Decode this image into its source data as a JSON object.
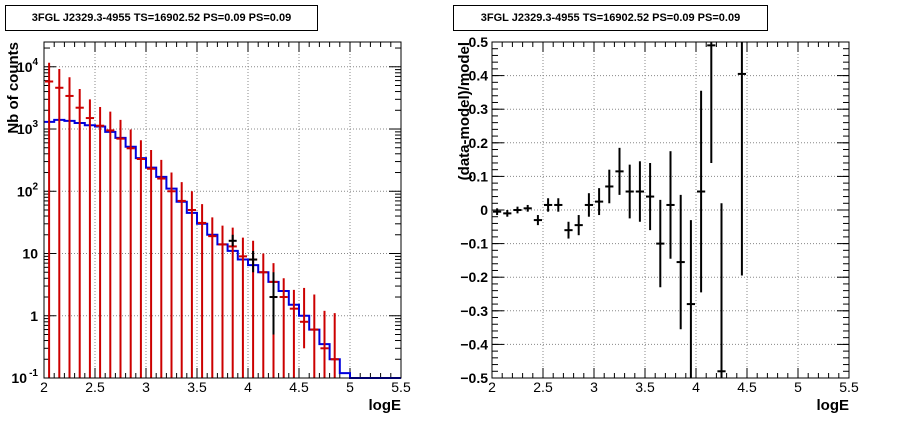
{
  "panels": [
    {
      "title": "3FGL J2329.3-4955 TS=16902.52 PS=0.09 PS=0.09"
    },
    {
      "title": "3FGL J2329.3-4955 TS=16902.52 PS=0.09 PS=0.09"
    }
  ],
  "colors": {
    "data": "#cc0000",
    "model": "#0000dd",
    "residual": "#000000",
    "grid": "#888888"
  },
  "chart_data": [
    {
      "type": "line",
      "title": "3FGL J2329.3-4955 TS=16902.52 PS=0.09 PS=0.09",
      "xlabel": "logE",
      "ylabel": "Nb of counts",
      "yscale": "log",
      "xlim": [
        2,
        5.5
      ],
      "ylim": [
        0.1,
        25000
      ],
      "grid": true,
      "x_ticks": [
        "2",
        "2.5",
        "3",
        "3.5",
        "4",
        "4.5",
        "5",
        "5.5"
      ],
      "y_ticks": [
        "10^-1",
        "1",
        "10",
        "10^2",
        "10^3",
        "10^4"
      ],
      "bin_edges": [
        2.0,
        2.1,
        2.2,
        2.3,
        2.4,
        2.5,
        2.6,
        2.7,
        2.8,
        2.9,
        3.0,
        3.1,
        3.2,
        3.3,
        3.4,
        3.5,
        3.6,
        3.7,
        3.8,
        3.9,
        4.0,
        4.1,
        4.2,
        4.3,
        4.4,
        4.5,
        4.6,
        4.7,
        4.8,
        4.9,
        5.0,
        5.1,
        5.2,
        5.3,
        5.4,
        5.5
      ],
      "series": [
        {
          "role": "data",
          "x": [
            2.05,
            2.15,
            2.25,
            2.35,
            2.45,
            2.55,
            2.65,
            2.75,
            2.85,
            2.95,
            3.05,
            3.15,
            3.25,
            3.35,
            3.45,
            3.55,
            3.65,
            3.75,
            3.85,
            3.95,
            4.05,
            4.15,
            4.25,
            4.35,
            4.45,
            4.55,
            4.65,
            4.75,
            4.85
          ],
          "values": [
            5800,
            4600,
            3400,
            2200,
            1500,
            1130,
            950,
            700,
            490,
            330,
            230,
            160,
            100,
            70,
            50,
            31,
            19,
            14,
            13,
            9,
            8,
            5,
            3.5,
            2,
            1.3,
            0.8,
            0.6,
            0.3,
            0.2
          ],
          "err_low": [
            5800,
            4600,
            3400,
            2200,
            1500,
            1130,
            950,
            700,
            490,
            330,
            230,
            160,
            100,
            70,
            50,
            31,
            19,
            14,
            13,
            9,
            8,
            5,
            3.5,
            2,
            1.3,
            0.5,
            0.5,
            0.25,
            0.18
          ],
          "err_high": [
            5800,
            4600,
            3400,
            2200,
            1500,
            1130,
            950,
            700,
            490,
            330,
            230,
            160,
            100,
            70,
            50,
            31,
            19,
            14,
            13,
            9,
            8,
            5,
            3.5,
            2,
            1.3,
            2,
            1.6,
            0.9,
            0.9
          ]
        },
        {
          "role": "model",
          "values": [
            1300,
            1400,
            1350,
            1250,
            1150,
            1100,
            900,
            720,
            520,
            340,
            240,
            170,
            110,
            68,
            45,
            30,
            20,
            14,
            11,
            8,
            6.5,
            5,
            3.5,
            2.5,
            1.5,
            1.0,
            0.6,
            0.35,
            0.2,
            0.12,
            0.1,
            0.1,
            0.1,
            0.1,
            0.1
          ]
        },
        {
          "role": "residual-data-points",
          "x": [
            3.85,
            4.05,
            4.25
          ],
          "values": [
            16,
            8,
            2
          ],
          "err_low": [
            3,
            3,
            1.5
          ],
          "err_high": [
            4,
            3,
            3
          ]
        }
      ]
    },
    {
      "type": "scatter",
      "title": "3FGL J2329.3-4955 TS=16902.52 PS=0.09 PS=0.09",
      "xlabel": "logE",
      "ylabel": "(data-model)/model",
      "xlim": [
        2,
        5.5
      ],
      "ylim": [
        -0.5,
        0.5
      ],
      "grid": true,
      "x_ticks": [
        "2",
        "2.5",
        "3",
        "3.5",
        "4",
        "4.5",
        "5",
        "5.5"
      ],
      "y_ticks": [
        "-0.5",
        "-0.4",
        "-0.3",
        "-0.2",
        "-0.1",
        "0",
        "0.1",
        "0.2",
        "0.3",
        "0.4",
        "0.5"
      ],
      "series": [
        {
          "x": [
            2.05,
            2.15,
            2.25,
            2.35,
            2.45,
            2.55,
            2.65,
            2.75,
            2.85,
            2.95,
            3.05,
            3.15,
            3.25,
            3.35,
            3.45,
            3.55,
            3.65,
            3.75,
            3.85,
            3.95,
            4.05,
            4.15,
            4.25,
            4.45
          ],
          "values": [
            -0.005,
            -0.01,
            0.0,
            0.005,
            -0.03,
            0.015,
            0.015,
            -0.06,
            -0.045,
            0.015,
            0.025,
            0.07,
            0.115,
            0.055,
            0.055,
            0.04,
            -0.1,
            0.015,
            -0.155,
            -0.28,
            0.055,
            0.49,
            -0.48,
            0.405
          ],
          "err": [
            0.01,
            0.01,
            0.01,
            0.01,
            0.015,
            0.02,
            0.02,
            0.025,
            0.03,
            0.035,
            0.04,
            0.05,
            0.07,
            0.08,
            0.09,
            0.1,
            0.13,
            0.16,
            0.2,
            0.25,
            0.3,
            0.35,
            0.5,
            0.6
          ]
        }
      ]
    }
  ]
}
